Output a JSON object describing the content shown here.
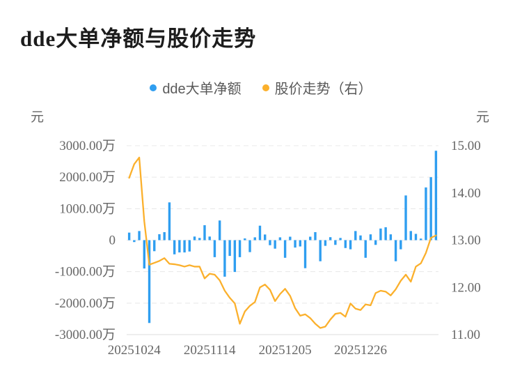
{
  "page": {
    "title": "dde大单净额与股价走势"
  },
  "legend": [
    {
      "label": "dde大单净额",
      "color": "#2f9ef0",
      "marker": "circle"
    },
    {
      "label": "股价走势（右）",
      "color": "#fbb02c",
      "marker": "circle"
    }
  ],
  "chart_data": {
    "type": "bar+line",
    "title": "dde大单净额与股价走势",
    "grid": true,
    "legend_position": "top",
    "x_tick_labels": [
      "20251024",
      "20251114",
      "20251205",
      "20251226"
    ],
    "x_tick_indices": [
      1,
      16,
      31,
      46
    ],
    "left_axis": {
      "label": "元",
      "unit_of_values": "万元",
      "min": -3000,
      "max": 3000,
      "tick_values": [
        3000,
        2000,
        1000,
        0,
        -1000,
        -2000,
        -3000
      ],
      "tick_labels": [
        "3000.00万",
        "2000.00万",
        "1000.00万",
        "0",
        "-1000.00万",
        "-2000.00万",
        "-3000.00万"
      ]
    },
    "right_axis": {
      "label": "元",
      "min": 11,
      "max": 15,
      "tick_values": [
        15,
        14,
        13,
        12,
        11
      ],
      "tick_labels": [
        "15.00",
        "14.00",
        "13.00",
        "12.00",
        "11.00"
      ]
    },
    "series": [
      {
        "name": "dde大单净额",
        "type": "bar",
        "axis": "left",
        "unit": "万元",
        "color": "#2f9ef0",
        "values": [
          240,
          -60,
          290,
          -900,
          -2630,
          -350,
          190,
          255,
          1200,
          -450,
          -390,
          -390,
          -360,
          115,
          70,
          475,
          115,
          -540,
          625,
          -1160,
          -500,
          -1010,
          -540,
          55,
          -380,
          90,
          460,
          180,
          -160,
          -270,
          90,
          -560,
          110,
          -235,
          -200,
          -890,
          110,
          255,
          -670,
          -180,
          95,
          -150,
          70,
          -250,
          -290,
          290,
          150,
          -560,
          185,
          -150,
          370,
          410,
          185,
          -670,
          -290,
          1420,
          290,
          200,
          50,
          1675,
          2000,
          2840
        ]
      },
      {
        "name": "股价走势（右）",
        "type": "line",
        "axis": "right",
        "unit": "元",
        "color": "#fbb02c",
        "values": [
          14.32,
          14.61,
          14.75,
          13.4,
          12.48,
          12.52,
          12.56,
          12.62,
          12.5,
          12.49,
          12.47,
          12.44,
          12.47,
          12.44,
          12.44,
          12.19,
          12.29,
          12.27,
          12.15,
          11.93,
          11.78,
          11.66,
          11.23,
          11.49,
          11.61,
          11.69,
          12.0,
          12.06,
          11.95,
          11.71,
          11.86,
          11.97,
          11.82,
          11.56,
          11.4,
          11.43,
          11.35,
          11.23,
          11.14,
          11.17,
          11.32,
          11.44,
          11.46,
          11.38,
          11.66,
          11.55,
          11.52,
          11.64,
          11.62,
          11.88,
          11.93,
          11.91,
          11.83,
          11.96,
          12.14,
          12.27,
          12.12,
          12.44,
          12.51,
          12.73,
          13.05,
          13.1
        ]
      }
    ]
  }
}
